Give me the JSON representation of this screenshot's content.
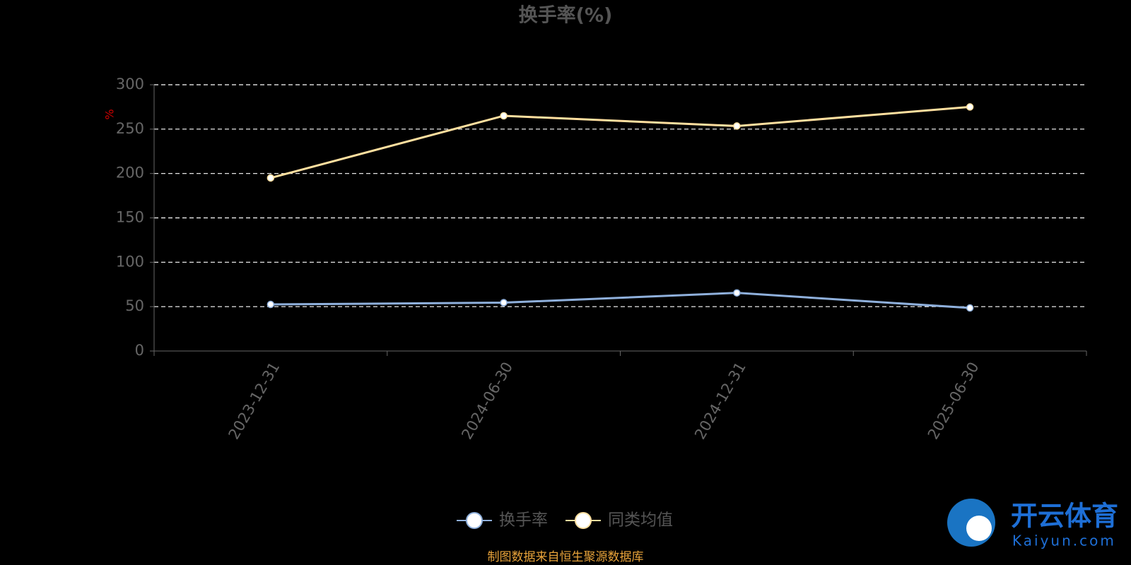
{
  "chart_data": {
    "type": "line",
    "title": "换手率(%)",
    "y_label": "%",
    "categories": [
      "2023-12-31",
      "2024-06-30",
      "2024-12-31",
      "2025-06-30"
    ],
    "series": [
      {
        "name": "换手率",
        "color": "#8fb0dc",
        "values": [
          52.5,
          54.5,
          65.5,
          48.5
        ]
      },
      {
        "name": "同类均值",
        "color": "#ffdf9f",
        "values": [
          195,
          265,
          253.5,
          275
        ]
      }
    ],
    "ylim": [
      0,
      300
    ],
    "yticks": [
      0,
      50,
      100,
      150,
      200,
      250,
      300
    ],
    "grid": true,
    "legend": "bottom",
    "source": "制图数据来自恒生聚源数据库",
    "watermark": {
      "brand": "开云体育",
      "site": "Kaiyun.com"
    }
  }
}
